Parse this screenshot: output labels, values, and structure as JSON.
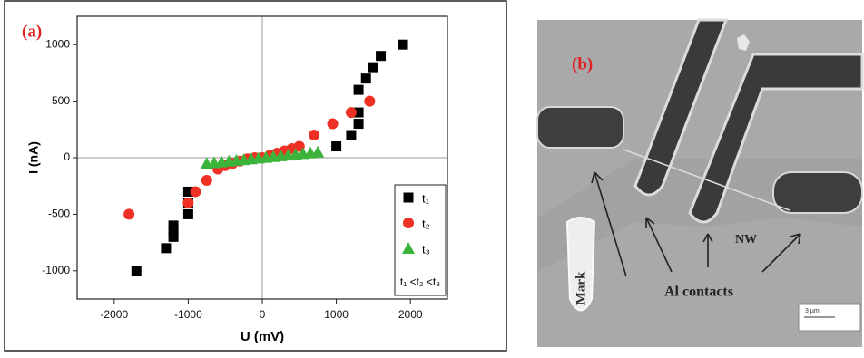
{
  "chart_data": {
    "type": "scatter",
    "panel_label": "(a)",
    "xlabel": "U (mV)",
    "ylabel": "I (nA)",
    "xlim": [
      -2500,
      2500
    ],
    "xticks": [
      -2000,
      -1000,
      0,
      1000,
      2000
    ],
    "ylim": [
      -1250,
      1250
    ],
    "yticks": [
      -1000,
      -500,
      0,
      500,
      1000
    ],
    "legend": "lower right",
    "annotation": "t₁ <t₂ <t₃",
    "series": [
      {
        "name": "t₁",
        "color": "#000000",
        "marker": "square",
        "x": [
          -1700,
          -1300,
          -1200,
          -1200,
          -1200,
          -1000,
          -1000,
          -1000,
          1000,
          1200,
          1300,
          1300,
          1300,
          1400,
          1500,
          1600,
          1900
        ],
        "values": [
          -1000,
          -800,
          -700,
          -650,
          -600,
          -500,
          -400,
          -300,
          100,
          200,
          300,
          400,
          600,
          700,
          800,
          900,
          1000
        ]
      },
      {
        "name": "t₂",
        "color": "#ee3124",
        "marker": "circle",
        "x": [
          -1800,
          -1000,
          -900,
          -750,
          -600,
          -500,
          -400,
          -300,
          -200,
          -100,
          0,
          100,
          200,
          300,
          400,
          500,
          700,
          950,
          1200,
          1450
        ],
        "values": [
          -500,
          -400,
          -300,
          -200,
          -100,
          -70,
          -50,
          -30,
          -10,
          0,
          0,
          20,
          40,
          60,
          80,
          100,
          200,
          300,
          400,
          500
        ]
      },
      {
        "name": "t₃",
        "color": "#3cb43c",
        "marker": "triangle",
        "x": [
          -750,
          -650,
          -550,
          -450,
          -350,
          -250,
          -150,
          -50,
          50,
          150,
          250,
          350,
          450,
          550,
          650,
          750
        ],
        "values": [
          -50,
          -43,
          -37,
          -30,
          -23,
          -17,
          -10,
          -3,
          3,
          10,
          17,
          23,
          30,
          37,
          43,
          50
        ]
      }
    ]
  },
  "image": {
    "panel_label": "(b)",
    "mark": "Mark",
    "contacts": "Al contacts",
    "nanowire": "NW",
    "scale_bar": "3 µm"
  }
}
